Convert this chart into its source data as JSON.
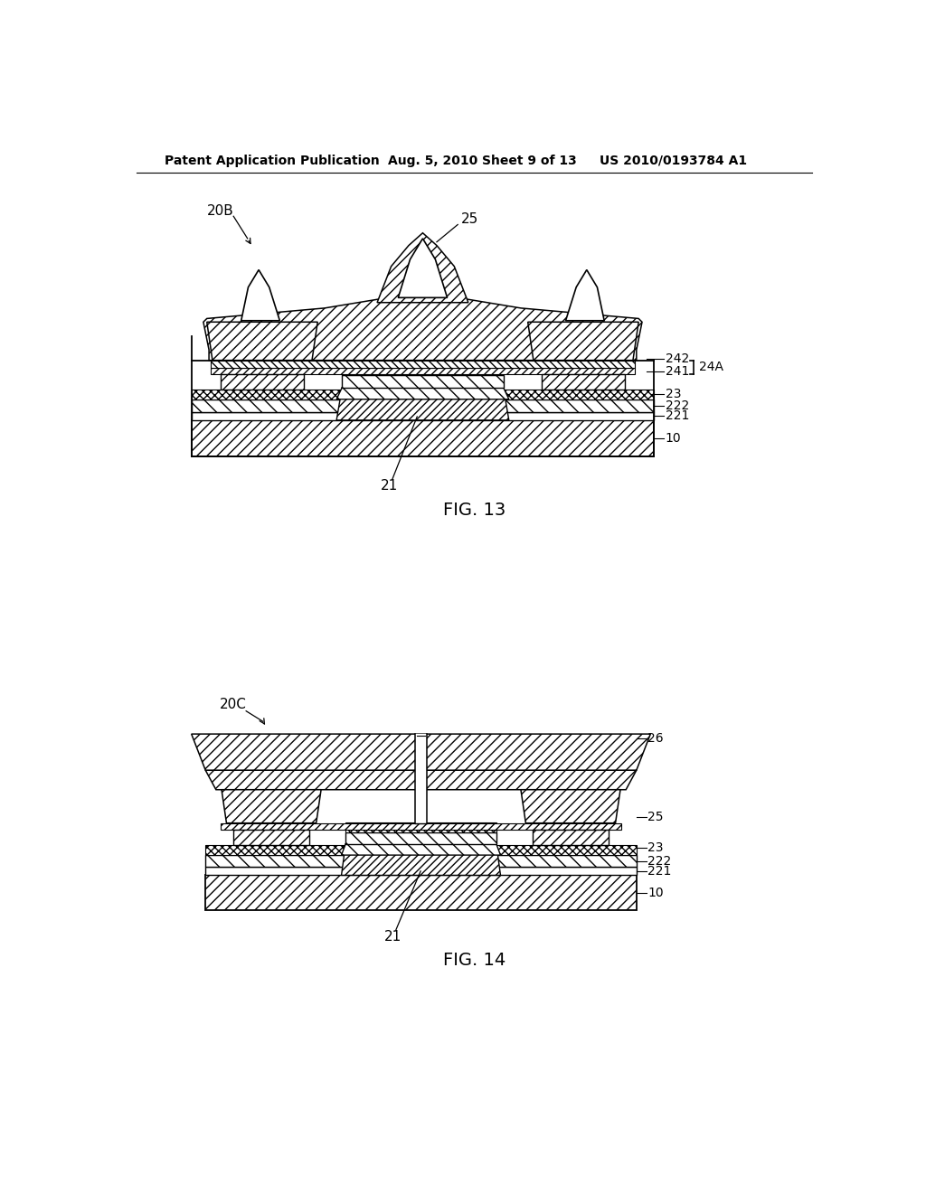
{
  "bg_color": "#ffffff",
  "header_text": "Patent Application Publication",
  "header_date": "Aug. 5, 2010",
  "header_sheet": "Sheet 9 of 13",
  "header_patent": "US 2010/0193784 A1",
  "fig13_label": "FIG. 13",
  "fig14_label": "FIG. 14",
  "fig_width": 10.24,
  "fig_height": 13.2
}
